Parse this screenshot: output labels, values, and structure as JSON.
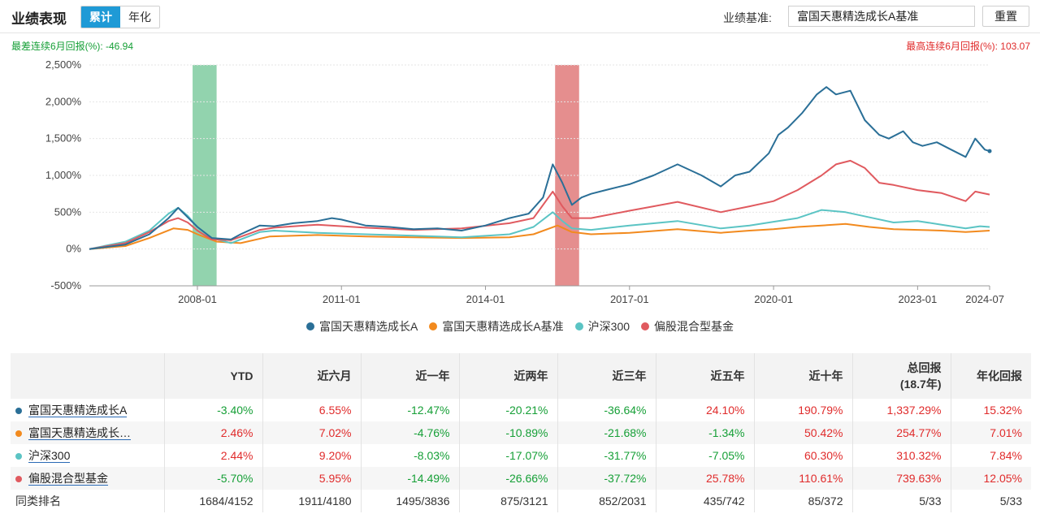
{
  "header": {
    "title": "业绩表现",
    "tabs": [
      {
        "label": "累计",
        "active": true
      },
      {
        "label": "年化",
        "active": false
      }
    ],
    "benchmark_label": "业绩基准:",
    "benchmark_value": "富国天惠精选成长A基准",
    "reset_label": "重置"
  },
  "stats": {
    "worst": "最差连续6月回报(%): -46.94",
    "best": "最高连续6月回报(%): 103.07"
  },
  "colors": {
    "fund": "#2a6f97",
    "benchmark": "#f28a1e",
    "index": "#5bc4c4",
    "category": "#e05a5f",
    "pos": "#e02b2b",
    "neg": "#159f36"
  },
  "chart_data": {
    "type": "line",
    "y_ticks": [
      "2,500%",
      "2,000%",
      "1,500%",
      "1,000%",
      "500%",
      "0%",
      "-500%"
    ],
    "y_tick_values": [
      2500,
      2000,
      1500,
      1000,
      500,
      0,
      -500
    ],
    "ylim": [
      -500,
      2500
    ],
    "x_ticks": [
      "2008-01",
      "2011-01",
      "2014-01",
      "2017-01",
      "2020-01",
      "2023-01",
      "2024-07"
    ],
    "x_tick_values": [
      2008.0,
      2011.0,
      2014.0,
      2017.0,
      2020.0,
      2023.0,
      2024.5
    ],
    "xlim": [
      2005.75,
      2024.5
    ],
    "highlight_bands": [
      {
        "from": 2007.9,
        "to": 2008.4,
        "color": "#7fcba0"
      },
      {
        "from": 2015.45,
        "to": 2015.95,
        "color": "#e07a7a"
      }
    ],
    "series": [
      {
        "name": "富国天惠精选成长A",
        "color": "#2a6f97",
        "x": [
          2005.75,
          2006.5,
          2007.0,
          2007.4,
          2007.6,
          2007.8,
          2008.0,
          2008.3,
          2008.7,
          2008.9,
          2009.3,
          2009.6,
          2010.0,
          2010.5,
          2010.8,
          2011.0,
          2011.5,
          2012.0,
          2012.5,
          2013.0,
          2013.5,
          2014.0,
          2014.5,
          2014.9,
          2015.2,
          2015.4,
          2015.6,
          2015.8,
          2016.0,
          2016.2,
          2016.5,
          2017.0,
          2017.5,
          2018.0,
          2018.5,
          2018.9,
          2019.2,
          2019.5,
          2019.9,
          2020.1,
          2020.3,
          2020.6,
          2020.9,
          2021.1,
          2021.3,
          2021.6,
          2021.9,
          2022.2,
          2022.4,
          2022.7,
          2022.9,
          2023.1,
          2023.4,
          2023.7,
          2024.0,
          2024.2,
          2024.4,
          2024.5
        ],
        "y": [
          0,
          60,
          200,
          420,
          560,
          430,
          300,
          150,
          130,
          200,
          320,
          310,
          350,
          380,
          420,
          400,
          320,
          300,
          270,
          280,
          250,
          320,
          420,
          480,
          700,
          1150,
          900,
          600,
          700,
          750,
          800,
          880,
          1000,
          1150,
          1000,
          850,
          1000,
          1050,
          1300,
          1550,
          1650,
          1850,
          2100,
          2200,
          2100,
          2150,
          1750,
          1550,
          1500,
          1600,
          1450,
          1400,
          1450,
          1350,
          1250,
          1500,
          1350,
          1330
        ]
      },
      {
        "name": "富国天惠精选成长A基准",
        "color": "#f28a1e",
        "x": [
          2005.75,
          2006.5,
          2007.0,
          2007.5,
          2007.8,
          2008.0,
          2008.4,
          2008.9,
          2009.5,
          2010.5,
          2011.5,
          2012.5,
          2013.5,
          2014.5,
          2015.0,
          2015.5,
          2015.8,
          2016.2,
          2017.0,
          2018.0,
          2018.9,
          2019.5,
          2020.0,
          2020.5,
          2021.0,
          2021.5,
          2022.0,
          2022.5,
          2023.0,
          2023.5,
          2024.0,
          2024.5
        ],
        "y": [
          0,
          40,
          150,
          280,
          260,
          200,
          100,
          80,
          170,
          190,
          170,
          160,
          150,
          160,
          200,
          320,
          230,
          200,
          220,
          270,
          220,
          250,
          270,
          300,
          320,
          340,
          300,
          270,
          260,
          250,
          230,
          250
        ]
      },
      {
        "name": "沪深300",
        "color": "#5bc4c4",
        "x": [
          2005.75,
          2006.5,
          2007.0,
          2007.4,
          2007.6,
          2007.8,
          2008.0,
          2008.3,
          2008.7,
          2009.3,
          2009.6,
          2010.5,
          2011.5,
          2012.5,
          2013.5,
          2014.5,
          2015.0,
          2015.4,
          2015.6,
          2015.8,
          2016.2,
          2017.0,
          2018.0,
          2018.9,
          2019.5,
          2020.0,
          2020.5,
          2021.0,
          2021.5,
          2022.0,
          2022.5,
          2023.0,
          2023.5,
          2024.0,
          2024.3,
          2024.5
        ],
        "y": [
          0,
          100,
          250,
          480,
          560,
          450,
          300,
          150,
          80,
          230,
          250,
          220,
          200,
          180,
          160,
          200,
          300,
          500,
          380,
          280,
          260,
          320,
          380,
          280,
          320,
          370,
          420,
          530,
          500,
          430,
          360,
          380,
          330,
          280,
          310,
          300
        ]
      },
      {
        "name": "偏股混合型基金",
        "color": "#e05a5f",
        "x": [
          2005.75,
          2006.5,
          2007.0,
          2007.4,
          2007.6,
          2007.8,
          2008.0,
          2008.3,
          2008.7,
          2009.3,
          2009.6,
          2010.5,
          2011.5,
          2012.5,
          2013.5,
          2014.5,
          2015.0,
          2015.4,
          2015.6,
          2015.8,
          2016.2,
          2017.0,
          2017.5,
          2018.0,
          2018.9,
          2019.5,
          2020.0,
          2020.5,
          2021.0,
          2021.3,
          2021.6,
          2021.9,
          2022.2,
          2022.5,
          2023.0,
          2023.5,
          2024.0,
          2024.2,
          2024.5
        ],
        "y": [
          0,
          80,
          230,
          380,
          420,
          360,
          250,
          130,
          120,
          260,
          290,
          330,
          290,
          260,
          280,
          350,
          420,
          780,
          580,
          420,
          420,
          520,
          580,
          640,
          500,
          580,
          650,
          800,
          1000,
          1150,
          1200,
          1100,
          900,
          870,
          800,
          760,
          650,
          780,
          740
        ]
      }
    ]
  },
  "table": {
    "headers": [
      "",
      "YTD",
      "近六月",
      "近一年",
      "近两年",
      "近三年",
      "近五年",
      "近十年",
      "总回报\n(18.7年)",
      "年化回报"
    ],
    "header_total_line1": "总回报",
    "header_total_line2": "(18.7年)",
    "rows": [
      {
        "name": "富国天惠精选成长A",
        "color": "#2a6f97",
        "values": [
          "-3.40%",
          "6.55%",
          "-12.47%",
          "-20.21%",
          "-36.64%",
          "24.10%",
          "190.79%",
          "1,337.29%",
          "15.32%"
        ]
      },
      {
        "name": "富国天惠精选成长…",
        "color": "#f28a1e",
        "values": [
          "2.46%",
          "7.02%",
          "-4.76%",
          "-10.89%",
          "-21.68%",
          "-1.34%",
          "50.42%",
          "254.77%",
          "7.01%"
        ]
      },
      {
        "name": "沪深300",
        "color": "#5bc4c4",
        "values": [
          "2.44%",
          "9.20%",
          "-8.03%",
          "-17.07%",
          "-31.77%",
          "-7.05%",
          "60.30%",
          "310.32%",
          "7.84%"
        ]
      },
      {
        "name": "偏股混合型基金",
        "color": "#e05a5f",
        "values": [
          "-5.70%",
          "5.95%",
          "-14.49%",
          "-26.66%",
          "-37.72%",
          "25.78%",
          "110.61%",
          "739.63%",
          "12.05%"
        ]
      }
    ],
    "rank_label": "同类排名",
    "rank_values": [
      "1684/4152",
      "1911/4180",
      "1495/3836",
      "875/3121",
      "852/2031",
      "435/742",
      "85/372",
      "5/33",
      "5/33"
    ]
  }
}
